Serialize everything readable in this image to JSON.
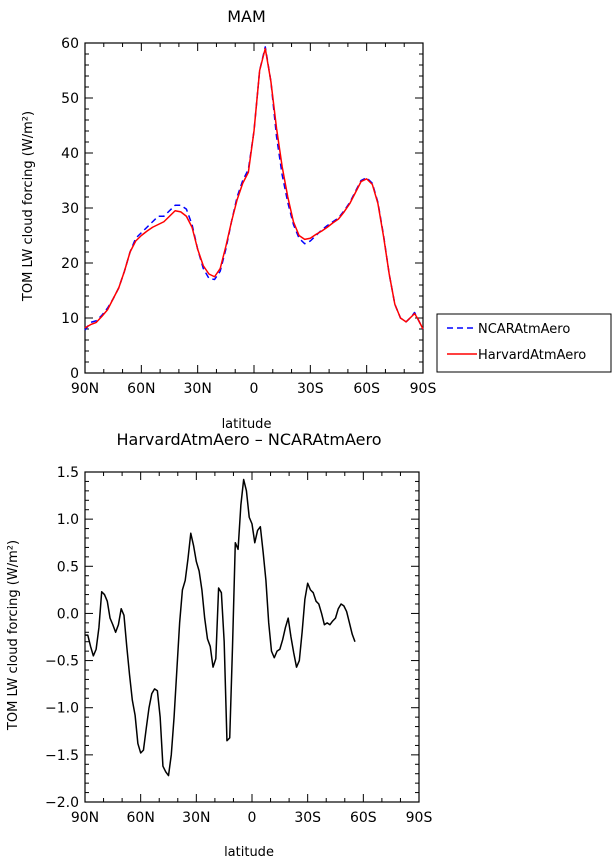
{
  "chart_data": [
    {
      "type": "line",
      "title": "MAM",
      "xlabel": "latitude",
      "ylabel": "TOM LW cloud forcing (W/m²)",
      "xlim": [
        90,
        -90
      ],
      "ylim": [
        0,
        60
      ],
      "xticks": [
        90,
        60,
        30,
        0,
        -30,
        -60,
        -90
      ],
      "xtick_labels": [
        "90N",
        "60N",
        "30N",
        "0",
        "30S",
        "60S",
        "90S"
      ],
      "yticks": [
        0,
        10,
        20,
        30,
        40,
        50,
        60
      ],
      "ytick_labels": [
        "0",
        "10",
        "20",
        "30",
        "40",
        "50",
        "60"
      ],
      "legend_position": "outside-right",
      "series": [
        {
          "name": "NCARAtmAero",
          "color": "#0000ff",
          "dash": "dashed",
          "points": [
            [
              90,
              7.8
            ],
            [
              87,
              9.2
            ],
            [
              84,
              9.5
            ],
            [
              81,
              10.5
            ],
            [
              78,
              11.8
            ],
            [
              75,
              13.5
            ],
            [
              72,
              15.5
            ],
            [
              69,
              18.5
            ],
            [
              66,
              22
            ],
            [
              63,
              24.5
            ],
            [
              60,
              25.5
            ],
            [
              57,
              26.5
            ],
            [
              54,
              27.5
            ],
            [
              51,
              28.5
            ],
            [
              48,
              28.5
            ],
            [
              45,
              29.5
            ],
            [
              42,
              30.5
            ],
            [
              39,
              30.5
            ],
            [
              36,
              29.8
            ],
            [
              33,
              27
            ],
            [
              30,
              22.5
            ],
            [
              27,
              19
            ],
            [
              24,
              17.2
            ],
            [
              21,
              17
            ],
            [
              18,
              18.5
            ],
            [
              15,
              22.5
            ],
            [
              12,
              27.5
            ],
            [
              9,
              32
            ],
            [
              6,
              35
            ],
            [
              3,
              37
            ],
            [
              0,
              44
            ],
            [
              -3,
              55
            ],
            [
              -6,
              59.3
            ],
            [
              -9,
              53
            ],
            [
              -12,
              43
            ],
            [
              -15,
              36
            ],
            [
              -18,
              31
            ],
            [
              -21,
              27
            ],
            [
              -24,
              24.5
            ],
            [
              -27,
              23.5
            ],
            [
              -30,
              24
            ],
            [
              -33,
              25
            ],
            [
              -36,
              26
            ],
            [
              -39,
              26.8
            ],
            [
              -42,
              27.5
            ],
            [
              -45,
              28.2
            ],
            [
              -48,
              29.5
            ],
            [
              -51,
              31
            ],
            [
              -54,
              33
            ],
            [
              -57,
              35
            ],
            [
              -60,
              35.5
            ],
            [
              -63,
              34.5
            ],
            [
              -66,
              31
            ],
            [
              -69,
              25
            ],
            [
              -72,
              18
            ],
            [
              -75,
              12.5
            ],
            [
              -78,
              10
            ],
            [
              -81,
              9.3
            ],
            [
              -84,
              10.3
            ],
            [
              -85.5,
              11
            ],
            [
              -87,
              10
            ],
            [
              -90,
              8
            ]
          ]
        },
        {
          "name": "HarvardAtmAero",
          "color": "#ff0000",
          "dash": "solid",
          "points": [
            [
              90,
              8.2
            ],
            [
              87,
              8.8
            ],
            [
              84,
              9.2
            ],
            [
              81,
              10.3
            ],
            [
              78,
              11.5
            ],
            [
              75,
              13.5
            ],
            [
              72,
              15.5
            ],
            [
              69,
              18.5
            ],
            [
              66,
              22
            ],
            [
              63,
              24
            ],
            [
              60,
              25
            ],
            [
              57,
              25.8
            ],
            [
              54,
              26.5
            ],
            [
              51,
              27
            ],
            [
              48,
              27.5
            ],
            [
              45,
              28.5
            ],
            [
              42,
              29.5
            ],
            [
              39,
              29.3
            ],
            [
              36,
              28.5
            ],
            [
              33,
              26.5
            ],
            [
              30,
              22.5
            ],
            [
              27,
              19.5
            ],
            [
              24,
              18
            ],
            [
              21,
              17.5
            ],
            [
              18,
              19
            ],
            [
              15,
              23
            ],
            [
              12,
              27.5
            ],
            [
              9,
              31.5
            ],
            [
              6,
              34.5
            ],
            [
              3,
              36.5
            ],
            [
              0,
              44
            ],
            [
              -3,
              55
            ],
            [
              -6,
              59
            ],
            [
              -9,
              53
            ],
            [
              -12,
              44.5
            ],
            [
              -15,
              37.5
            ],
            [
              -18,
              32
            ],
            [
              -21,
              27.5
            ],
            [
              -24,
              25
            ],
            [
              -27,
              24.3
            ],
            [
              -30,
              24.5
            ],
            [
              -33,
              25.2
            ],
            [
              -36,
              25.8
            ],
            [
              -39,
              26.5
            ],
            [
              -42,
              27.3
            ],
            [
              -45,
              28
            ],
            [
              -48,
              29.3
            ],
            [
              -51,
              30.8
            ],
            [
              -54,
              32.8
            ],
            [
              -57,
              34.8
            ],
            [
              -60,
              35.3
            ],
            [
              -63,
              34.3
            ],
            [
              -66,
              30.8
            ],
            [
              -69,
              24.8
            ],
            [
              -72,
              18
            ],
            [
              -75,
              12.5
            ],
            [
              -78,
              10
            ],
            [
              -81,
              9.3
            ],
            [
              -84,
              10.3
            ],
            [
              -85.5,
              10.8
            ],
            [
              -87,
              10
            ],
            [
              -90,
              8
            ]
          ]
        }
      ]
    },
    {
      "type": "line",
      "title": "HarvardAtmAero – NCARAtmAero",
      "xlabel": "latitude",
      "ylabel": "TOM LW cloud forcing (W/m²)",
      "xlim": [
        90,
        -90
      ],
      "ylim": [
        -2.0,
        1.5
      ],
      "xticks": [
        90,
        60,
        30,
        0,
        -30,
        -60,
        -90
      ],
      "xtick_labels": [
        "90N",
        "60N",
        "30N",
        "0",
        "30S",
        "60S",
        "90S"
      ],
      "yticks": [
        -2.0,
        -1.5,
        -1.0,
        -0.5,
        0.0,
        0.5,
        1.0,
        1.5
      ],
      "ytick_labels": [
        "−2.0",
        "−1.5",
        "−1.0",
        "−0.5",
        "0.0",
        "0.5",
        "1.0",
        "1.5"
      ],
      "series": [
        {
          "color": "#000000",
          "dash": "solid",
          "points": [
            [
              90,
              -0.23
            ],
            [
              88.5,
              -0.23
            ],
            [
              87,
              -0.35
            ],
            [
              85.5,
              -0.45
            ],
            [
              84,
              -0.38
            ],
            [
              82.5,
              -0.15
            ],
            [
              81,
              0.23
            ],
            [
              79.5,
              0.2
            ],
            [
              78,
              0.13
            ],
            [
              76.5,
              -0.05
            ],
            [
              75,
              -0.12
            ],
            [
              73.5,
              -0.2
            ],
            [
              72,
              -0.12
            ],
            [
              70.5,
              0.05
            ],
            [
              69,
              -0.02
            ],
            [
              67.5,
              -0.35
            ],
            [
              66,
              -0.65
            ],
            [
              64.5,
              -0.92
            ],
            [
              63,
              -1.08
            ],
            [
              61.5,
              -1.38
            ],
            [
              60,
              -1.48
            ],
            [
              58.5,
              -1.45
            ],
            [
              57,
              -1.22
            ],
            [
              55.5,
              -1.0
            ],
            [
              54,
              -0.85
            ],
            [
              52.5,
              -0.8
            ],
            [
              51,
              -0.82
            ],
            [
              49.5,
              -1.1
            ],
            [
              48,
              -1.62
            ],
            [
              46.5,
              -1.68
            ],
            [
              45,
              -1.72
            ],
            [
              43.5,
              -1.5
            ],
            [
              42,
              -1.1
            ],
            [
              40.5,
              -0.6
            ],
            [
              39,
              -0.1
            ],
            [
              37.5,
              0.25
            ],
            [
              36,
              0.35
            ],
            [
              34.5,
              0.58
            ],
            [
              33,
              0.85
            ],
            [
              31.5,
              0.72
            ],
            [
              30,
              0.55
            ],
            [
              28.5,
              0.45
            ],
            [
              27,
              0.25
            ],
            [
              25.5,
              -0.05
            ],
            [
              24,
              -0.27
            ],
            [
              22.5,
              -0.35
            ],
            [
              21,
              -0.57
            ],
            [
              19.5,
              -0.48
            ],
            [
              18,
              0.27
            ],
            [
              16.5,
              0.22
            ],
            [
              15,
              -0.3
            ],
            [
              13.5,
              -1.35
            ],
            [
              12,
              -1.32
            ],
            [
              10.5,
              -0.35
            ],
            [
              9,
              0.75
            ],
            [
              7.5,
              0.68
            ],
            [
              6,
              1.15
            ],
            [
              4.5,
              1.42
            ],
            [
              3,
              1.3
            ],
            [
              1.5,
              1.02
            ],
            [
              0,
              0.95
            ],
            [
              -1.5,
              0.75
            ],
            [
              -3,
              0.88
            ],
            [
              -4.5,
              0.92
            ],
            [
              -6,
              0.65
            ],
            [
              -7.5,
              0.35
            ],
            [
              -9,
              -0.1
            ],
            [
              -10.5,
              -0.4
            ],
            [
              -12,
              -0.47
            ],
            [
              -13.5,
              -0.4
            ],
            [
              -15,
              -0.38
            ],
            [
              -16.5,
              -0.28
            ],
            [
              -18,
              -0.15
            ],
            [
              -19.5,
              -0.05
            ],
            [
              -21,
              -0.25
            ],
            [
              -22.5,
              -0.42
            ],
            [
              -24,
              -0.57
            ],
            [
              -25.5,
              -0.5
            ],
            [
              -27,
              -0.2
            ],
            [
              -28.5,
              0.15
            ],
            [
              -30,
              0.32
            ],
            [
              -31.5,
              0.25
            ],
            [
              -33,
              0.22
            ],
            [
              -34.5,
              0.13
            ],
            [
              -36,
              0.1
            ],
            [
              -37.5,
              0.0
            ],
            [
              -39,
              -0.12
            ],
            [
              -40.5,
              -0.1
            ],
            [
              -42,
              -0.12
            ],
            [
              -43.5,
              -0.08
            ],
            [
              -45,
              -0.05
            ],
            [
              -46.5,
              0.05
            ],
            [
              -48,
              0.1
            ],
            [
              -49.5,
              0.08
            ],
            [
              -51,
              0.02
            ],
            [
              -52.5,
              -0.1
            ],
            [
              -54,
              -0.22
            ],
            [
              -55.5,
              -0.3
            ]
          ]
        }
      ]
    }
  ]
}
